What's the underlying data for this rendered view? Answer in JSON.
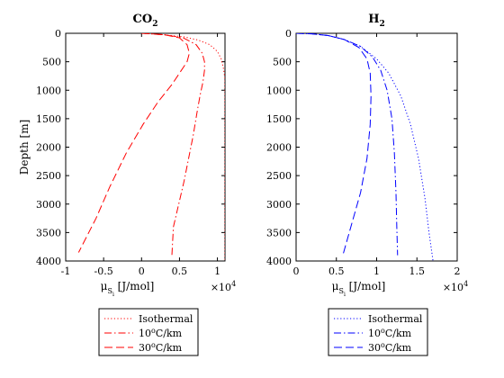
{
  "chart_data": [
    {
      "type": "line",
      "title": "CO",
      "title_sub": "2",
      "xlabel_main": "μ",
      "xlabel_sub1": "S",
      "xlabel_sub2": "i",
      "xlabel_units": "[J/mol]",
      "ylabel": "Depth [m]",
      "xlim": [
        -1,
        1.1
      ],
      "ylim": [
        0,
        4000
      ],
      "y_reversed": true,
      "x_multiplier": "×10",
      "x_multiplier_exp": "4",
      "x_ticks": [
        -1,
        -0.5,
        0,
        0.5,
        1
      ],
      "x_tick_labels": [
        "-1",
        "-0.5",
        "0",
        "0.5",
        "1"
      ],
      "y_ticks": [
        0,
        500,
        1000,
        1500,
        2000,
        2500,
        3000,
        3500,
        4000
      ],
      "y_tick_labels": [
        "0",
        "500",
        "1000",
        "1500",
        "2000",
        "2500",
        "3000",
        "3500",
        "4000"
      ],
      "grid": false,
      "legend_position": "below",
      "series": [
        {
          "name": "Isothermal",
          "color": "#ff0000",
          "dash": "dotted",
          "x": [
            0,
            0.3,
            0.55,
            0.75,
            0.9,
            1.0,
            1.05,
            1.08,
            1.1,
            1.1,
            1.1,
            1.1,
            1.1,
            1.1,
            1.1,
            1.1,
            1.1
          ],
          "y": [
            0,
            25,
            60,
            120,
            200,
            320,
            450,
            620,
            800,
            1000,
            1500,
            2000,
            2500,
            3000,
            3500,
            3900,
            4000
          ]
        },
        {
          "name": "10oC/km",
          "color": "#ff0000",
          "dash": "dashdot",
          "x": [
            0,
            0.3,
            0.55,
            0.72,
            0.8,
            0.83,
            0.83,
            0.81,
            0.77,
            0.73,
            0.68,
            0.62,
            0.56,
            0.49,
            0.42,
            0.4
          ],
          "y": [
            0,
            25,
            80,
            200,
            350,
            500,
            650,
            850,
            1100,
            1400,
            1800,
            2200,
            2600,
            3000,
            3400,
            3900
          ]
        },
        {
          "name": "30oC/km",
          "color": "#ff0000",
          "dash": "dashed",
          "x": [
            0,
            0.3,
            0.5,
            0.6,
            0.63,
            0.6,
            0.5,
            0.4,
            0.22,
            0.02,
            -0.2,
            -0.42,
            -0.6,
            -0.83
          ],
          "y": [
            0,
            25,
            80,
            200,
            350,
            500,
            700,
            900,
            1200,
            1600,
            2100,
            2700,
            3250,
            3850
          ]
        }
      ]
    },
    {
      "type": "line",
      "title": "H",
      "title_sub": "2",
      "xlabel_main": "μ",
      "xlabel_sub1": "S",
      "xlabel_sub2": "i",
      "xlabel_units": "[J/mol]",
      "ylabel": "",
      "xlim": [
        0,
        2
      ],
      "ylim": [
        0,
        4000
      ],
      "y_reversed": true,
      "x_multiplier": "×10",
      "x_multiplier_exp": "4",
      "x_ticks": [
        0,
        0.5,
        1,
        1.5,
        2
      ],
      "x_tick_labels": [
        "0",
        "0.5",
        "1",
        "1.5",
        "2"
      ],
      "y_ticks": [
        0,
        500,
        1000,
        1500,
        2000,
        2500,
        3000,
        3500,
        4000
      ],
      "y_tick_labels": [
        "0",
        "500",
        "1000",
        "1500",
        "2000",
        "2500",
        "3000",
        "3500",
        "4000"
      ],
      "grid": false,
      "legend_position": "below",
      "series": [
        {
          "name": "Isothermal",
          "color": "#0000ff",
          "dash": "dotted",
          "x": [
            0,
            0.2,
            0.4,
            0.6,
            0.8,
            1.0,
            1.15,
            1.3,
            1.42,
            1.52,
            1.6,
            1.65,
            1.7
          ],
          "y": [
            0,
            10,
            40,
            110,
            230,
            450,
            700,
            1100,
            1600,
            2200,
            2900,
            3500,
            4000
          ]
        },
        {
          "name": "10oC/km",
          "color": "#0000ff",
          "dash": "dashdot",
          "x": [
            0,
            0.2,
            0.4,
            0.6,
            0.8,
            0.95,
            1.05,
            1.13,
            1.19,
            1.22,
            1.24,
            1.25,
            1.26
          ],
          "y": [
            0,
            10,
            40,
            110,
            230,
            420,
            650,
            1000,
            1500,
            2100,
            2800,
            3400,
            3900
          ]
        },
        {
          "name": "30oC/km",
          "color": "#0000ff",
          "dash": "dashed",
          "x": [
            0,
            0.2,
            0.4,
            0.6,
            0.78,
            0.88,
            0.92,
            0.93,
            0.92,
            0.88,
            0.8,
            0.7,
            0.58
          ],
          "y": [
            0,
            10,
            40,
            110,
            250,
            450,
            700,
            1100,
            1600,
            2200,
            2800,
            3300,
            3900
          ]
        }
      ]
    }
  ]
}
